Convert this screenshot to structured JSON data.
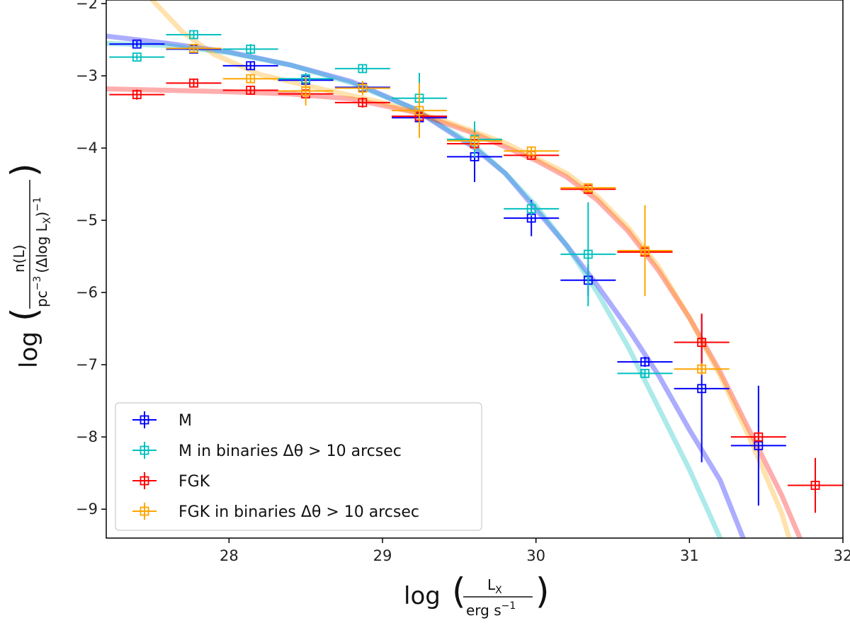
{
  "chart_data": {
    "type": "scatter",
    "xlim": [
      27.2,
      32.0
    ],
    "ylim": [
      -9.4,
      -1.95
    ],
    "x_ticks": [
      28,
      29,
      30,
      31,
      32
    ],
    "y_ticks": [
      -2,
      -3,
      -4,
      -5,
      -6,
      -7,
      -8,
      -9
    ],
    "x_tick_labels": [
      "28",
      "29",
      "30",
      "31",
      "32"
    ],
    "y_tick_labels": [
      "−2",
      "−3",
      "−4",
      "−5",
      "−6",
      "−7",
      "−8",
      "−9"
    ],
    "xlabel": {
      "prefix": "log",
      "numerator": "L",
      "numerator_sub": "X",
      "denominator": "erg s",
      "denominator_sup": "−1"
    },
    "ylabel": {
      "prefix": "log",
      "numerator": "n(L)",
      "denominator": "pc",
      "denominator_sup": "−3",
      "denominator_rest": "(Δlog L",
      "denominator_sub": "X",
      "denominator_end": ")",
      "denominator_end_sup": "−1"
    },
    "legend_position": "lower-left",
    "series": [
      {
        "name": "M",
        "color": "#0000ff",
        "points": [
          {
            "x": 27.4,
            "y": -2.56,
            "xerr": 0.18,
            "yerr": 0.04
          },
          {
            "x": 27.77,
            "y": -2.63,
            "xerr": 0.18,
            "yerr": 0.04
          },
          {
            "x": 28.14,
            "y": -2.86,
            "xerr": 0.18,
            "yerr": 0.05
          },
          {
            "x": 28.5,
            "y": -3.06,
            "xerr": 0.18,
            "yerr": 0.07
          },
          {
            "x": 28.87,
            "y": -3.16,
            "xerr": 0.18,
            "yerr": 0.08
          },
          {
            "x": 29.24,
            "y": -3.58,
            "xerr": 0.18,
            "yerr": 0.12
          },
          {
            "x": 29.6,
            "y": -4.12,
            "xerr": 0.18,
            "yerr": 0.35
          },
          {
            "x": 29.97,
            "y": -4.97,
            "xerr": 0.18,
            "yerr": 0.25
          },
          {
            "x": 30.34,
            "y": -5.83,
            "xerr": 0.18,
            "yerr": 0.22
          },
          {
            "x": 30.71,
            "y": -6.96,
            "xerr": 0.18,
            "yerr": 0.07
          },
          {
            "x": 31.08,
            "y": -7.33,
            "xerr": 0.18,
            "yerr": 1.02
          },
          {
            "x": 31.45,
            "y": -8.12,
            "xerr": 0.18,
            "yerr": 0.83
          }
        ]
      },
      {
        "name": "M in binaries Δθ > 10 arcsec",
        "color": "#00bfbf",
        "points": [
          {
            "x": 27.4,
            "y": -2.74,
            "xerr": 0.18,
            "yerr": 0.04
          },
          {
            "x": 27.77,
            "y": -2.43,
            "xerr": 0.18,
            "yerr": 0.05
          },
          {
            "x": 28.14,
            "y": -2.63,
            "xerr": 0.18,
            "yerr": 0.07
          },
          {
            "x": 28.5,
            "y": -3.04,
            "xerr": 0.18,
            "yerr": 0.08
          },
          {
            "x": 28.87,
            "y": -2.9,
            "xerr": 0.18,
            "yerr": 0.06
          },
          {
            "x": 29.24,
            "y": -3.31,
            "xerr": 0.18,
            "yerr": 0.35
          },
          {
            "x": 29.6,
            "y": -3.88,
            "xerr": 0.18,
            "yerr": 0.25
          },
          {
            "x": 29.97,
            "y": -4.84,
            "xerr": 0.18,
            "yerr": 0.1
          },
          {
            "x": 30.34,
            "y": -5.47,
            "xerr": 0.18,
            "yerr": 0.72
          },
          {
            "x": 30.71,
            "y": -7.12,
            "xerr": 0.18,
            "yerr": 0.06
          }
        ]
      },
      {
        "name": "FGK",
        "color": "#ff0000",
        "points": [
          {
            "x": 27.4,
            "y": -3.26,
            "xerr": 0.18,
            "yerr": 0.07
          },
          {
            "x": 27.77,
            "y": -3.1,
            "xerr": 0.18,
            "yerr": 0.05
          },
          {
            "x": 28.14,
            "y": -3.2,
            "xerr": 0.18,
            "yerr": 0.05
          },
          {
            "x": 28.5,
            "y": -3.25,
            "xerr": 0.18,
            "yerr": 0.06
          },
          {
            "x": 28.87,
            "y": -3.37,
            "xerr": 0.18,
            "yerr": 0.07
          },
          {
            "x": 29.24,
            "y": -3.56,
            "xerr": 0.18,
            "yerr": 0.1
          },
          {
            "x": 29.6,
            "y": -3.94,
            "xerr": 0.18,
            "yerr": 0.05
          },
          {
            "x": 29.97,
            "y": -4.1,
            "xerr": 0.18,
            "yerr": 0.04
          },
          {
            "x": 30.34,
            "y": -4.57,
            "xerr": 0.18,
            "yerr": 0.05
          },
          {
            "x": 30.71,
            "y": -5.44,
            "xerr": 0.18,
            "yerr": 0.07
          },
          {
            "x": 31.08,
            "y": -6.69,
            "xerr": 0.18,
            "yerr": 0.4
          },
          {
            "x": 31.45,
            "y": -8.0,
            "xerr": 0.18,
            "yerr": 0.07
          },
          {
            "x": 31.82,
            "y": -8.67,
            "xerr": 0.18,
            "yerr": 0.38
          }
        ]
      },
      {
        "name": "FGK in binaries Δθ > 10 arcsec",
        "color": "#ffa500",
        "points": [
          {
            "x": 27.77,
            "y": -2.62,
            "xerr": 0.18,
            "yerr": 0.05
          },
          {
            "x": 28.14,
            "y": -3.04,
            "xerr": 0.18,
            "yerr": 0.06
          },
          {
            "x": 28.5,
            "y": -3.21,
            "xerr": 0.18,
            "yerr": 0.2
          },
          {
            "x": 28.87,
            "y": -3.17,
            "xerr": 0.18,
            "yerr": 0.1
          },
          {
            "x": 29.24,
            "y": -3.48,
            "xerr": 0.18,
            "yerr": 0.38
          },
          {
            "x": 29.6,
            "y": -3.9,
            "xerr": 0.18,
            "yerr": 0.12
          },
          {
            "x": 29.97,
            "y": -4.04,
            "xerr": 0.18,
            "yerr": 0.06
          },
          {
            "x": 30.34,
            "y": -4.55,
            "xerr": 0.18,
            "yerr": 0.05
          },
          {
            "x": 30.71,
            "y": -5.42,
            "xerr": 0.18,
            "yerr": 0.63
          },
          {
            "x": 31.08,
            "y": -7.06,
            "xerr": 0.18,
            "yerr": 0.08
          }
        ]
      }
    ],
    "fit_curves": [
      {
        "series": "M",
        "color": "#0000ff",
        "points": [
          [
            27.2,
            -2.45
          ],
          [
            27.6,
            -2.55
          ],
          [
            28.0,
            -2.67
          ],
          [
            28.4,
            -2.85
          ],
          [
            28.8,
            -3.08
          ],
          [
            29.2,
            -3.45
          ],
          [
            29.6,
            -4.0
          ],
          [
            29.8,
            -4.35
          ],
          [
            30.0,
            -4.85
          ],
          [
            30.2,
            -5.35
          ],
          [
            30.4,
            -5.9
          ],
          [
            30.6,
            -6.5
          ],
          [
            30.8,
            -7.15
          ],
          [
            31.0,
            -7.9
          ],
          [
            31.2,
            -8.6
          ],
          [
            31.35,
            -9.4
          ]
        ]
      },
      {
        "series": "M in binaries Δθ > 10 arcsec",
        "color": "#00bfbf",
        "points": [
          [
            27.2,
            -2.55
          ],
          [
            27.6,
            -2.58
          ],
          [
            28.0,
            -2.68
          ],
          [
            28.4,
            -2.85
          ],
          [
            28.8,
            -3.1
          ],
          [
            29.2,
            -3.45
          ],
          [
            29.6,
            -3.97
          ],
          [
            29.8,
            -4.35
          ],
          [
            30.0,
            -4.8
          ],
          [
            30.2,
            -5.35
          ],
          [
            30.4,
            -6.0
          ],
          [
            30.6,
            -6.75
          ],
          [
            30.8,
            -7.6
          ],
          [
            31.0,
            -8.45
          ],
          [
            31.2,
            -9.4
          ]
        ]
      },
      {
        "series": "FGK",
        "color": "#ff0000",
        "points": [
          [
            27.2,
            -3.18
          ],
          [
            27.6,
            -3.2
          ],
          [
            28.0,
            -3.22
          ],
          [
            28.4,
            -3.25
          ],
          [
            28.8,
            -3.32
          ],
          [
            29.2,
            -3.5
          ],
          [
            29.6,
            -3.8
          ],
          [
            30.0,
            -4.17
          ],
          [
            30.2,
            -4.4
          ],
          [
            30.4,
            -4.72
          ],
          [
            30.6,
            -5.15
          ],
          [
            30.8,
            -5.7
          ],
          [
            31.0,
            -6.35
          ],
          [
            31.2,
            -7.1
          ],
          [
            31.4,
            -7.95
          ],
          [
            31.6,
            -8.8
          ],
          [
            31.72,
            -9.4
          ]
        ]
      },
      {
        "series": "FGK in binaries Δθ > 10 arcsec",
        "color": "#ffa500",
        "points": [
          [
            27.5,
            -1.95
          ],
          [
            27.7,
            -2.4
          ],
          [
            27.9,
            -2.7
          ],
          [
            28.2,
            -2.98
          ],
          [
            28.6,
            -3.18
          ],
          [
            29.0,
            -3.37
          ],
          [
            29.4,
            -3.62
          ],
          [
            29.8,
            -3.93
          ],
          [
            30.2,
            -4.35
          ],
          [
            30.4,
            -4.67
          ],
          [
            30.6,
            -5.1
          ],
          [
            30.8,
            -5.65
          ],
          [
            31.0,
            -6.35
          ],
          [
            31.2,
            -7.15
          ],
          [
            31.4,
            -8.05
          ],
          [
            31.6,
            -9.05
          ],
          [
            31.65,
            -9.4
          ]
        ]
      }
    ]
  }
}
